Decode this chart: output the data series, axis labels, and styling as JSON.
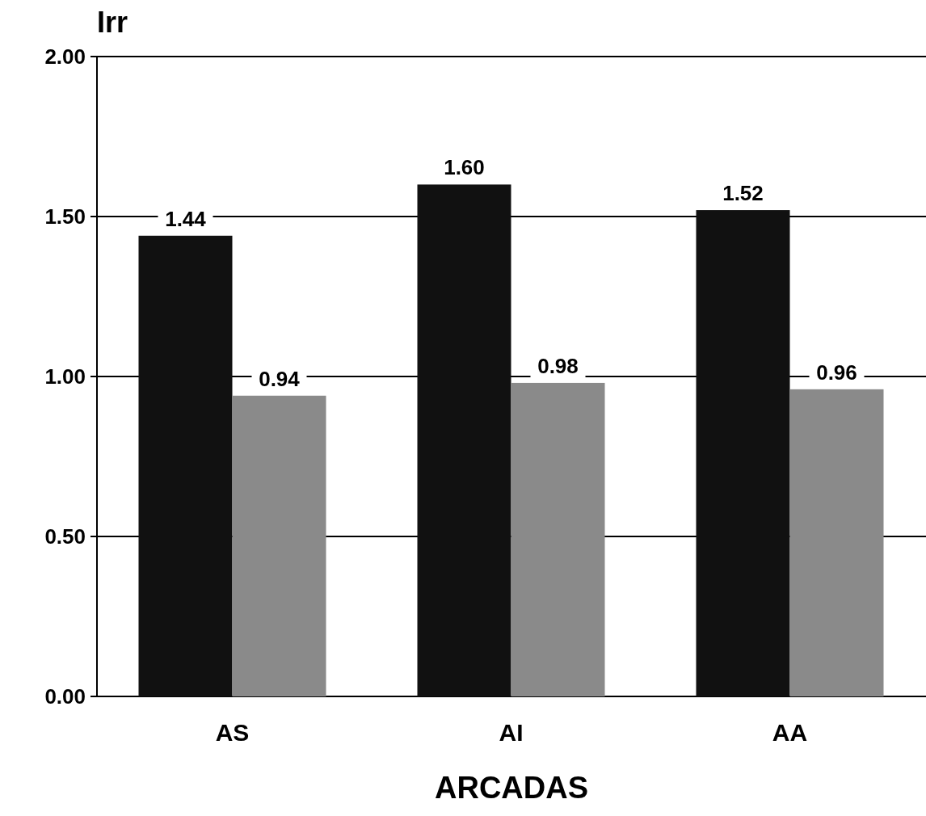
{
  "chart_data": {
    "type": "bar",
    "xlabel": "ARCADAS",
    "ylabel": "Irr",
    "categories": [
      "AS",
      "AI",
      "AA"
    ],
    "series": [
      {
        "color": "#111111",
        "values": [
          1.44,
          1.6,
          1.52
        ],
        "value_labels": [
          "1.44",
          "1.60",
          "1.52"
        ]
      },
      {
        "color": "#8a8a8a",
        "values": [
          0.94,
          0.98,
          0.96
        ],
        "value_labels": [
          "0.94",
          "0.98",
          "0.96"
        ]
      }
    ],
    "ylim": [
      0,
      2
    ],
    "yticks": [
      {
        "value": 0,
        "label": "0.00"
      },
      {
        "value": 0.5,
        "label": "0.50"
      },
      {
        "value": 1,
        "label": "1.00"
      },
      {
        "value": 1.5,
        "label": "1.50"
      },
      {
        "value": 2,
        "label": "2.00"
      }
    ],
    "grid": "y"
  }
}
